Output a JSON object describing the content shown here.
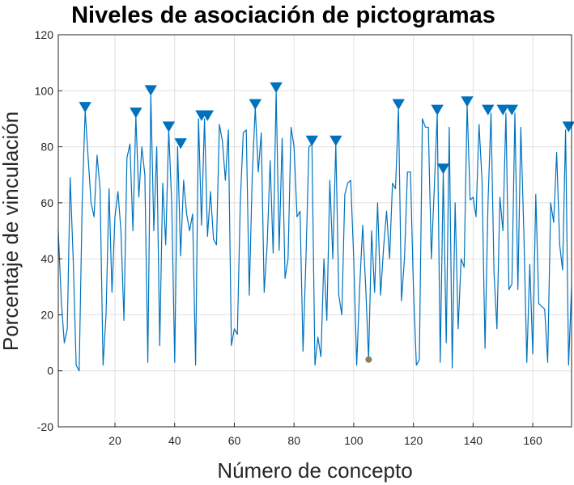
{
  "chart_data": {
    "type": "line",
    "title": "Niveles de asociación de pictogramas",
    "xlabel": "Número de concepto",
    "ylabel": "Porcentaje de vinculación",
    "xlim": [
      1,
      173
    ],
    "ylim": [
      -20,
      120
    ],
    "xticks": [
      20,
      40,
      60,
      80,
      100,
      120,
      140,
      160
    ],
    "yticks": [
      -20,
      0,
      20,
      40,
      60,
      80,
      100,
      120
    ],
    "grid": true,
    "colors": {
      "line": "#0072BD",
      "marker": "#0072BD",
      "highlight": "#8C8060",
      "grid": "#E0E0E0",
      "axis": "#262626"
    },
    "series": [
      {
        "x": [
          1,
          2,
          3,
          4,
          5,
          6,
          7,
          8,
          9,
          10,
          11,
          12,
          13,
          14,
          15,
          16,
          17,
          18,
          19,
          20,
          21,
          22,
          23,
          24,
          25,
          26,
          27,
          28,
          29,
          30,
          31,
          32,
          33,
          34,
          35,
          36,
          37,
          38,
          39,
          40,
          41,
          42,
          43,
          44,
          45,
          46,
          47,
          48,
          49,
          50,
          51,
          52,
          53,
          54,
          55,
          56,
          57,
          58,
          59,
          60,
          61,
          62,
          63,
          64,
          65,
          66,
          67,
          68,
          69,
          70,
          71,
          72,
          73,
          74,
          75,
          76,
          77,
          78,
          79,
          80,
          81,
          82,
          83,
          84,
          85,
          86,
          87,
          88,
          89,
          90,
          91,
          92,
          93,
          94,
          95,
          96,
          97,
          98,
          99,
          100,
          101,
          102,
          103,
          104,
          105,
          106,
          107,
          108,
          109,
          110,
          111,
          112,
          113,
          114,
          115,
          116,
          117,
          118,
          119,
          120,
          121,
          122,
          123,
          124,
          125,
          126,
          127,
          128,
          129,
          130,
          131,
          132,
          133,
          134,
          135,
          136,
          137,
          138,
          139,
          140,
          141,
          142,
          143,
          144,
          145,
          146,
          147,
          148,
          149,
          150,
          151,
          152,
          153,
          154,
          155,
          156,
          157,
          158,
          159,
          160,
          161,
          162,
          163,
          164,
          165,
          166,
          167,
          168,
          169,
          170,
          171,
          172,
          173
        ],
        "y": [
          50,
          25,
          10,
          15,
          69,
          40,
          2,
          0,
          60,
          93,
          76,
          60,
          55,
          77,
          65,
          2,
          20,
          65,
          28,
          55,
          64,
          50,
          18,
          76,
          81,
          50,
          91,
          62,
          80,
          70,
          3,
          99,
          50,
          80,
          9,
          67,
          45,
          86,
          60,
          3,
          80,
          41,
          68,
          56,
          50,
          56,
          2,
          90,
          52,
          90,
          48,
          64,
          47,
          45,
          88,
          82,
          68,
          86,
          9,
          15,
          13,
          60,
          85,
          86,
          27,
          70,
          94,
          71,
          85,
          28,
          45,
          75,
          42,
          100,
          43,
          83,
          33,
          40,
          87,
          80,
          55,
          57,
          7,
          40,
          80,
          81,
          2,
          12,
          5,
          40,
          18,
          68,
          40,
          81,
          27,
          20,
          63,
          67,
          68,
          40,
          2,
          30,
          52,
          30,
          4,
          50,
          28,
          60,
          27,
          44,
          57,
          40,
          67,
          65,
          94,
          25,
          40,
          71,
          71,
          30,
          2,
          4,
          90,
          87,
          87,
          40,
          65,
          92,
          3,
          71,
          10,
          87,
          1,
          60,
          15,
          40,
          37,
          95,
          61,
          62,
          55,
          88,
          68,
          8,
          60,
          92,
          35,
          15,
          62,
          50,
          92,
          29,
          31,
          92,
          29,
          87,
          50,
          3,
          38,
          6,
          63,
          24,
          23,
          22,
          3,
          60,
          53,
          78,
          45,
          36,
          86,
          2,
          30
        ]
      }
    ],
    "peak_markers": [
      {
        "x": 10,
        "y": 93
      },
      {
        "x": 27,
        "y": 91
      },
      {
        "x": 32,
        "y": 99
      },
      {
        "x": 38,
        "y": 86
      },
      {
        "x": 42,
        "y": 80
      },
      {
        "x": 49,
        "y": 90
      },
      {
        "x": 51,
        "y": 90
      },
      {
        "x": 67,
        "y": 94
      },
      {
        "x": 74,
        "y": 100
      },
      {
        "x": 86,
        "y": 81
      },
      {
        "x": 94,
        "y": 81
      },
      {
        "x": 115,
        "y": 94
      },
      {
        "x": 128,
        "y": 92
      },
      {
        "x": 130,
        "y": 71
      },
      {
        "x": 138,
        "y": 95
      },
      {
        "x": 145,
        "y": 92
      },
      {
        "x": 150,
        "y": 92
      },
      {
        "x": 153,
        "y": 92
      },
      {
        "x": 172,
        "y": 86
      }
    ],
    "highlight_point": {
      "x": 105,
      "y": 4
    }
  }
}
